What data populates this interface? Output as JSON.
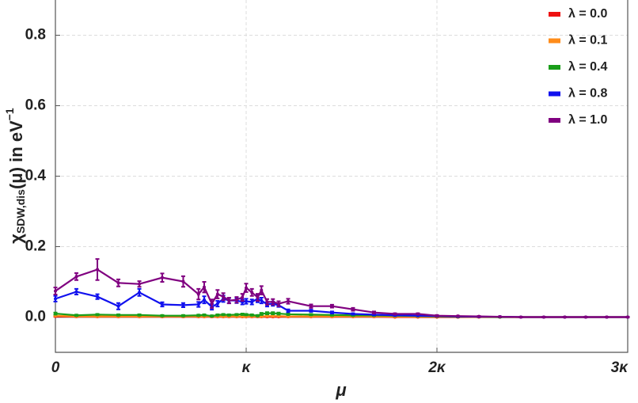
{
  "chart_data": {
    "type": "line",
    "x_label": "μ",
    "y_label": {
      "symbol": "χ",
      "subscript": "SDW,dis",
      "text": "(μ) in eV",
      "superscript": "−1"
    },
    "xlim": [
      0,
      3
    ],
    "ylim": [
      -0.1,
      0.9
    ],
    "xticks": [
      0,
      {
        "value": 1,
        "label": "κ"
      },
      {
        "value": 2,
        "label": "2κ"
      },
      {
        "value": 3,
        "label": "3κ"
      }
    ],
    "yticks": [
      {
        "value": 0,
        "label": "0.0"
      },
      0.2,
      0.4,
      0.6,
      0.8
    ],
    "grid": true,
    "legend": "top-right",
    "x": [
      0,
      0.11,
      0.22,
      0.33,
      0.44,
      0.56,
      0.67,
      0.75,
      0.78,
      0.82,
      0.85,
      0.88,
      0.91,
      0.95,
      0.98,
      1.0,
      1.03,
      1.06,
      1.08,
      1.11,
      1.14,
      1.17,
      1.22,
      1.34,
      1.45,
      1.56,
      1.67,
      1.78,
      1.9,
      2.0,
      2.11,
      2.22,
      2.33,
      2.44,
      2.56,
      2.67,
      2.78,
      2.89,
      3.0
    ],
    "series": [
      {
        "name": "λ = 0.0",
        "color": "#ee1111",
        "values": [
          0.002,
          0.001,
          0.001,
          0.001,
          0.001,
          0.001,
          0.001,
          0.001,
          0.001,
          0.001,
          0.001,
          0.001,
          0.001,
          0.001,
          0.001,
          0.001,
          0.001,
          0.001,
          0.001,
          0.001,
          0.001,
          0.001,
          0.001,
          0.001,
          0.001,
          0.001,
          0.001,
          0,
          0,
          0,
          0,
          0,
          0,
          0,
          0,
          0,
          0,
          0,
          0
        ],
        "errors": [
          0.001,
          0.001,
          0.001,
          0.001,
          0.001,
          0.001,
          0.001,
          0.001,
          0.001,
          0.001,
          0.001,
          0.001,
          0.001,
          0.001,
          0.001,
          0.001,
          0.001,
          0.001,
          0.001,
          0.001,
          0.001,
          0.001,
          0.001,
          0.001,
          0.001,
          0.001,
          0.001,
          0.001,
          0.001,
          0.001,
          0.001,
          0.001,
          0.001,
          0.001,
          0.001,
          0.001,
          0.001,
          0.001,
          0.001
        ]
      },
      {
        "name": "λ = 0.1",
        "color": "#ff8c1a",
        "values": [
          0.004,
          0.002,
          0.002,
          0.002,
          0.002,
          0.002,
          0.002,
          0.002,
          0.002,
          0.002,
          0.002,
          0.002,
          0.002,
          0.002,
          0.002,
          0.002,
          0.002,
          0.002,
          0.002,
          0.003,
          0.003,
          0.003,
          0.002,
          0.002,
          0.002,
          0.002,
          0.002,
          0.001,
          0.001,
          0.001,
          0.001,
          0,
          0,
          0,
          0,
          0,
          0,
          0,
          0
        ],
        "errors": [
          0.001,
          0.001,
          0.001,
          0.001,
          0.001,
          0.001,
          0.001,
          0.001,
          0.001,
          0.001,
          0.001,
          0.001,
          0.001,
          0.001,
          0.001,
          0.001,
          0.001,
          0.001,
          0.001,
          0.001,
          0.001,
          0.001,
          0.001,
          0.001,
          0.001,
          0.001,
          0.001,
          0.001,
          0.001,
          0.001,
          0.001,
          0.001,
          0.001,
          0.001,
          0.001,
          0.001,
          0.001,
          0.001,
          0.001
        ]
      },
      {
        "name": "λ = 0.4",
        "color": "#1a9e1a",
        "values": [
          0.01,
          0.005,
          0.007,
          0.006,
          0.006,
          0.004,
          0.004,
          0.005,
          0.006,
          0.003,
          0.006,
          0.007,
          0.006,
          0.007,
          0.008,
          0.007,
          0.006,
          0.004,
          0.009,
          0.011,
          0.011,
          0.01,
          0.008,
          0.007,
          0.006,
          0.005,
          0.005,
          0.004,
          0.003,
          0.002,
          0.001,
          0.001,
          0,
          0,
          0,
          0,
          0,
          0,
          0
        ],
        "errors": [
          0.003,
          0.002,
          0.002,
          0.002,
          0.002,
          0.002,
          0.002,
          0.002,
          0.002,
          0.002,
          0.002,
          0.002,
          0.002,
          0.002,
          0.002,
          0.002,
          0.002,
          0.002,
          0.003,
          0.003,
          0.003,
          0.003,
          0.002,
          0.002,
          0.002,
          0.002,
          0.002,
          0.001,
          0.001,
          0.001,
          0.001,
          0.001,
          0.001,
          0.001,
          0.001,
          0.001,
          0.001,
          0.001,
          0.001
        ]
      },
      {
        "name": "λ = 0.8",
        "color": "#1111ee",
        "values": [
          0.052,
          0.072,
          0.058,
          0.031,
          0.07,
          0.036,
          0.034,
          0.036,
          0.049,
          0.029,
          0.038,
          0.052,
          0.047,
          0.047,
          0.043,
          0.045,
          0.043,
          0.052,
          0.047,
          0.036,
          0.038,
          0.034,
          0.018,
          0.018,
          0.013,
          0.009,
          0.007,
          0.005,
          0.004,
          0.003,
          0.002,
          0.001,
          0.001,
          0,
          0,
          0,
          0,
          0,
          0
        ],
        "errors": [
          0.008,
          0.008,
          0.007,
          0.009,
          0.01,
          0.006,
          0.006,
          0.007,
          0.01,
          0.008,
          0.008,
          0.009,
          0.007,
          0.007,
          0.007,
          0.007,
          0.007,
          0.01,
          0.008,
          0.006,
          0.006,
          0.005,
          0.004,
          0.003,
          0.003,
          0.002,
          0.002,
          0.002,
          0.001,
          0.001,
          0.001,
          0.001,
          0.001,
          0.001,
          0.001,
          0.001,
          0.001,
          0.001,
          0.001
        ]
      },
      {
        "name": "λ = 1.0",
        "color": "#800080",
        "values": [
          0.074,
          0.115,
          0.135,
          0.097,
          0.094,
          0.112,
          0.101,
          0.065,
          0.085,
          0.038,
          0.065,
          0.058,
          0.047,
          0.049,
          0.056,
          0.083,
          0.07,
          0.056,
          0.076,
          0.043,
          0.043,
          0.038,
          0.045,
          0.031,
          0.031,
          0.022,
          0.013,
          0.009,
          0.009,
          0.004,
          0.003,
          0.002,
          0.001,
          0,
          0,
          0,
          0,
          0,
          0
        ],
        "errors": [
          0.01,
          0.01,
          0.03,
          0.01,
          0.008,
          0.012,
          0.015,
          0.015,
          0.015,
          0.012,
          0.012,
          0.01,
          0.008,
          0.008,
          0.01,
          0.012,
          0.01,
          0.01,
          0.012,
          0.008,
          0.008,
          0.007,
          0.007,
          0.005,
          0.004,
          0.004,
          0.003,
          0.002,
          0.002,
          0.002,
          0.001,
          0.001,
          0.001,
          0.001,
          0.001,
          0.001,
          0.001,
          0.001,
          0.001
        ]
      }
    ]
  }
}
